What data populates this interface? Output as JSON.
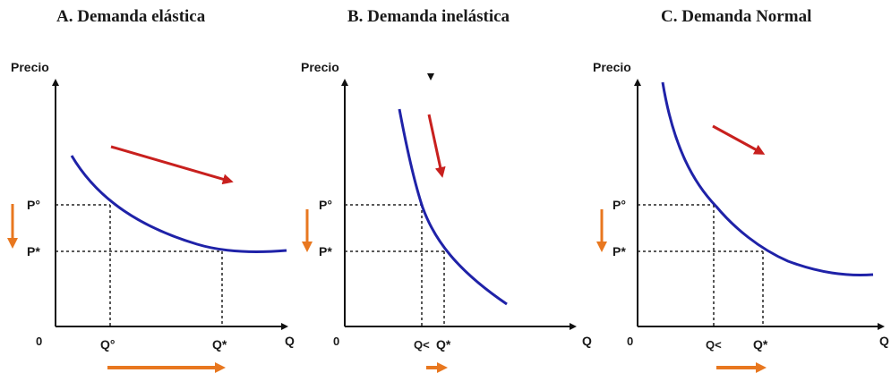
{
  "colors": {
    "curve": "#1f22a8",
    "red_arrow": "#c8201e",
    "orange_arrow": "#e8771f",
    "axis": "#111111",
    "guide": "#222222"
  },
  "panels": [
    {
      "title": "A.  Demanda elástica",
      "y_axis_label": "Precio",
      "x_axis_label": "Q",
      "origin_label": "0",
      "p_upper_label": "P°",
      "p_lower_label": "P*",
      "q_left_label": "Q°",
      "q_right_label": "Q*"
    },
    {
      "title": "B.  Demanda inelástica",
      "y_axis_label": "Precio",
      "x_axis_label": "Q",
      "origin_label": "0",
      "p_upper_label": "P°",
      "p_lower_label": "P*",
      "q_left_label": "Q<",
      "q_right_label": "Q*"
    },
    {
      "title": "C.  Demanda Normal",
      "y_axis_label": "Precio",
      "x_axis_label": "Q",
      "origin_label": "0",
      "p_upper_label": "P°",
      "p_lower_label": "P*",
      "q_left_label": "Q<",
      "q_right_label": "Q*"
    }
  ]
}
